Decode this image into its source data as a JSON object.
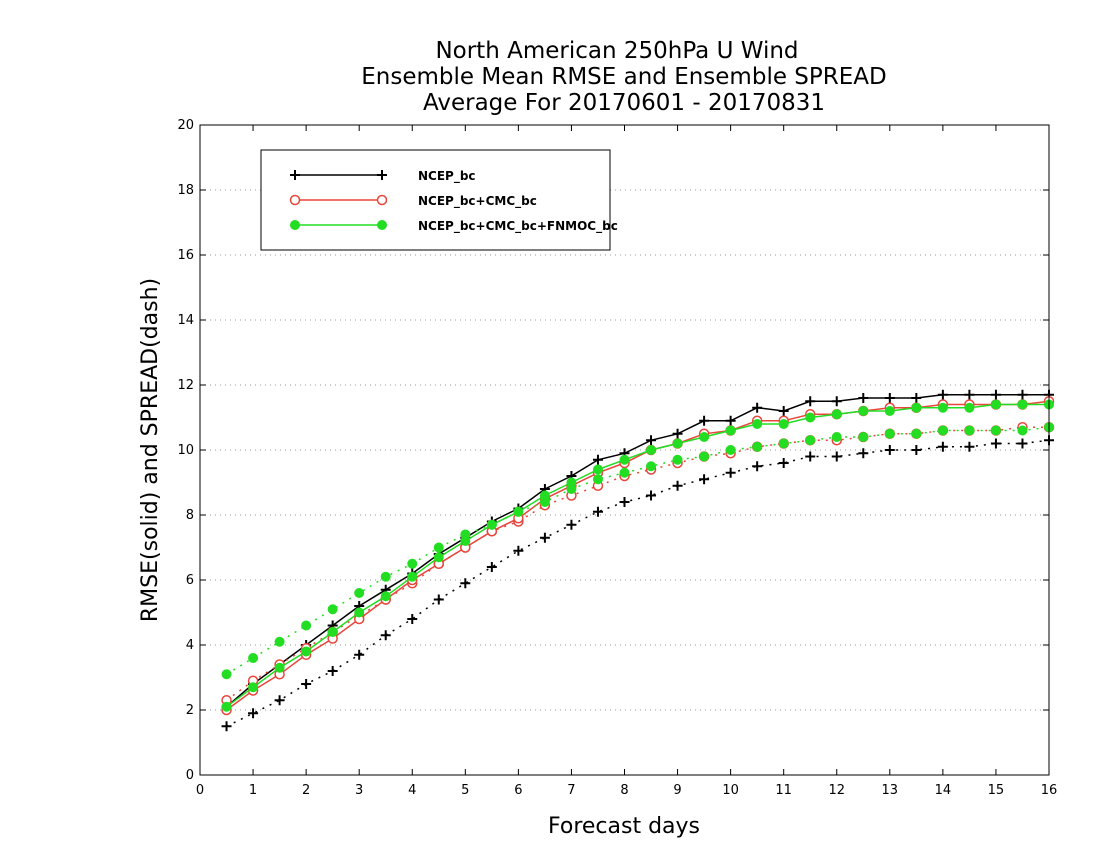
{
  "chart_data": {
    "type": "line",
    "title": [
      "North American 250hPa U Wind",
      "Ensemble Mean RMSE and Ensemble SPREAD",
      "Average For 20170601 - 20170831"
    ],
    "xlabel": "Forecast days",
    "ylabel": "RMSE(solid) and SPREAD(dash)",
    "xlim": [
      0,
      16
    ],
    "ylim": [
      0,
      20
    ],
    "xticks": [
      "0",
      "1",
      "2",
      "3",
      "4",
      "5",
      "6",
      "7",
      "8",
      "9",
      "10",
      "11",
      "12",
      "13",
      "14",
      "15",
      "16"
    ],
    "yticks": [
      "0",
      "2",
      "4",
      "6",
      "8",
      "10",
      "12",
      "14",
      "16",
      "18",
      "20"
    ],
    "grid": "horizontal dotted",
    "legend_placement": "top-left",
    "x": [
      0.5,
      1,
      1.5,
      2,
      2.5,
      3,
      3.5,
      4,
      4.5,
      5,
      5.5,
      6,
      6.5,
      7,
      7.5,
      8,
      8.5,
      9,
      9.5,
      10,
      10.5,
      11,
      11.5,
      12,
      12.5,
      13,
      13.5,
      14,
      14.5,
      15,
      15.5,
      16
    ],
    "series": [
      {
        "name": "NCEP_bc",
        "color": "#000000",
        "marker": "plus",
        "rmse": [
          2.1,
          2.8,
          3.4,
          4.0,
          4.6,
          5.2,
          5.7,
          6.2,
          6.8,
          7.3,
          7.8,
          8.2,
          8.8,
          9.2,
          9.7,
          9.9,
          10.3,
          10.5,
          10.9,
          10.9,
          11.3,
          11.2,
          11.5,
          11.5,
          11.6,
          11.6,
          11.6,
          11.7,
          11.7,
          11.7,
          11.7,
          11.7
        ],
        "spread": [
          1.5,
          1.9,
          2.3,
          2.8,
          3.2,
          3.7,
          4.3,
          4.8,
          5.4,
          5.9,
          6.4,
          6.9,
          7.3,
          7.7,
          8.1,
          8.4,
          8.6,
          8.9,
          9.1,
          9.3,
          9.5,
          9.6,
          9.8,
          9.8,
          9.9,
          10.0,
          10.0,
          10.1,
          10.1,
          10.2,
          10.2,
          10.3
        ]
      },
      {
        "name": "NCEP_bc+CMC_bc",
        "color": "#e8463c",
        "marker": "open-circle",
        "rmse": [
          2.0,
          2.6,
          3.1,
          3.7,
          4.2,
          4.8,
          5.4,
          6.0,
          6.5,
          7.0,
          7.5,
          7.9,
          8.5,
          8.9,
          9.3,
          9.6,
          10.0,
          10.2,
          10.5,
          10.6,
          10.9,
          10.9,
          11.1,
          11.1,
          11.2,
          11.3,
          11.3,
          11.4,
          11.4,
          11.4,
          11.4,
          11.5
        ],
        "spread": [
          2.3,
          2.9,
          3.4,
          3.9,
          4.4,
          4.9,
          5.4,
          5.9,
          6.5,
          7.0,
          7.5,
          7.8,
          8.3,
          8.6,
          8.9,
          9.2,
          9.4,
          9.6,
          9.8,
          9.9,
          10.1,
          10.2,
          10.3,
          10.3,
          10.4,
          10.5,
          10.5,
          10.6,
          10.6,
          10.6,
          10.7,
          10.7
        ]
      },
      {
        "name": "NCEP_bc+CMC_bc+FNMOC_bc",
        "color": "#22dd22",
        "marker": "filled-circle",
        "rmse": [
          2.1,
          2.7,
          3.3,
          3.8,
          4.4,
          5.0,
          5.5,
          6.1,
          6.7,
          7.2,
          7.7,
          8.1,
          8.6,
          9.0,
          9.4,
          9.7,
          10.0,
          10.2,
          10.4,
          10.6,
          10.8,
          10.8,
          11.0,
          11.1,
          11.2,
          11.2,
          11.3,
          11.3,
          11.3,
          11.4,
          11.4,
          11.4
        ],
        "spread": [
          3.1,
          3.6,
          4.1,
          4.6,
          5.1,
          5.6,
          6.1,
          6.5,
          7.0,
          7.4,
          7.7,
          8.1,
          8.4,
          8.8,
          9.1,
          9.3,
          9.5,
          9.7,
          9.8,
          10.0,
          10.1,
          10.2,
          10.3,
          10.4,
          10.4,
          10.5,
          10.5,
          10.6,
          10.6,
          10.6,
          10.6,
          10.7
        ]
      }
    ]
  }
}
